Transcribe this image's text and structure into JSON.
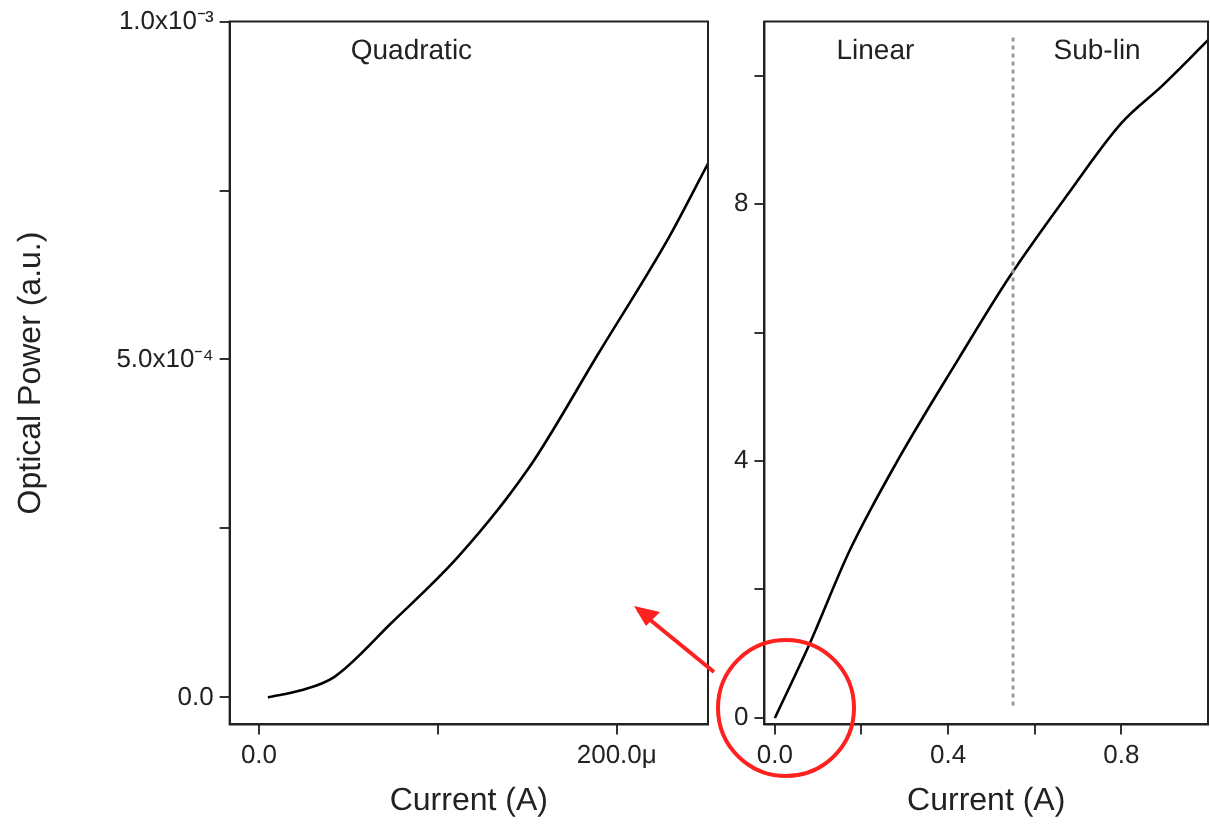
{
  "chart_data": [
    {
      "type": "line",
      "ylabel": "Optical Power (a.u.)",
      "xlabel": "Current (A)",
      "annotations": [
        "Quadratic"
      ],
      "marker": "none",
      "line_style": "solid",
      "grid": false,
      "legend": false,
      "xlim": [
        -16.4,
        251
      ],
      "ylim": [
        -4e-05,
        0.001
      ],
      "xticks": [
        {
          "value": 0,
          "label": "0.0"
        },
        {
          "value": 100,
          "label": null
        },
        {
          "value": 200,
          "label": "200.0μ"
        }
      ],
      "yticks": [
        {
          "value": 0,
          "label": "0.0"
        },
        {
          "value": 0.00025,
          "label": null
        },
        {
          "value": 0.0005,
          "label": "5.0x10⁻⁴"
        },
        {
          "value": 0.00075,
          "label": null
        },
        {
          "value": 0.001,
          "label": "1.0x10⁻³"
        }
      ],
      "series": [
        {
          "color": "#000000",
          "x": [
            5,
            23,
            42,
            74,
            112,
            151,
            190,
            229,
            251
          ],
          "values": [
            0,
            1e-05,
            3e-05,
            0.00011,
            0.00021,
            0.00034,
            0.00051,
            0.00068,
            0.00079
          ]
        }
      ]
    },
    {
      "type": "line",
      "xlabel": "Current (A)",
      "annotations": [
        "Linear",
        "Sub-lin"
      ],
      "marker": "none",
      "line_style": "solid",
      "grid": false,
      "legend": false,
      "xlim": [
        -0.024,
        1.0
      ],
      "ylim": [
        -0.1,
        10.84
      ],
      "xticks": [
        {
          "value": 0,
          "label": "0.0"
        },
        {
          "value": 0.2,
          "label": null
        },
        {
          "value": 0.4,
          "label": "0.4"
        },
        {
          "value": 0.6,
          "label": null
        },
        {
          "value": 0.8,
          "label": "0.8"
        }
      ],
      "yticks": [
        {
          "value": 0,
          "label": "0"
        },
        {
          "value": 2,
          "label": null
        },
        {
          "value": 4,
          "label": "4"
        },
        {
          "value": 6,
          "label": null
        },
        {
          "value": 8,
          "label": "8"
        },
        {
          "value": 10,
          "label": null
        }
      ],
      "ref_lines": [
        {
          "axis": "x",
          "value": 0.55,
          "color": "#999999",
          "line_style": "dotted"
        }
      ],
      "series": [
        {
          "color": "#000000",
          "x": [
            0,
            0.078,
            0.173,
            0.282,
            0.424,
            0.541,
            0.675,
            0.8,
            0.894,
            1.0
          ],
          "values": [
            0,
            1.12,
            2.61,
            3.99,
            5.59,
            6.86,
            8.14,
            9.26,
            9.84,
            10.55
          ]
        }
      ]
    }
  ]
}
